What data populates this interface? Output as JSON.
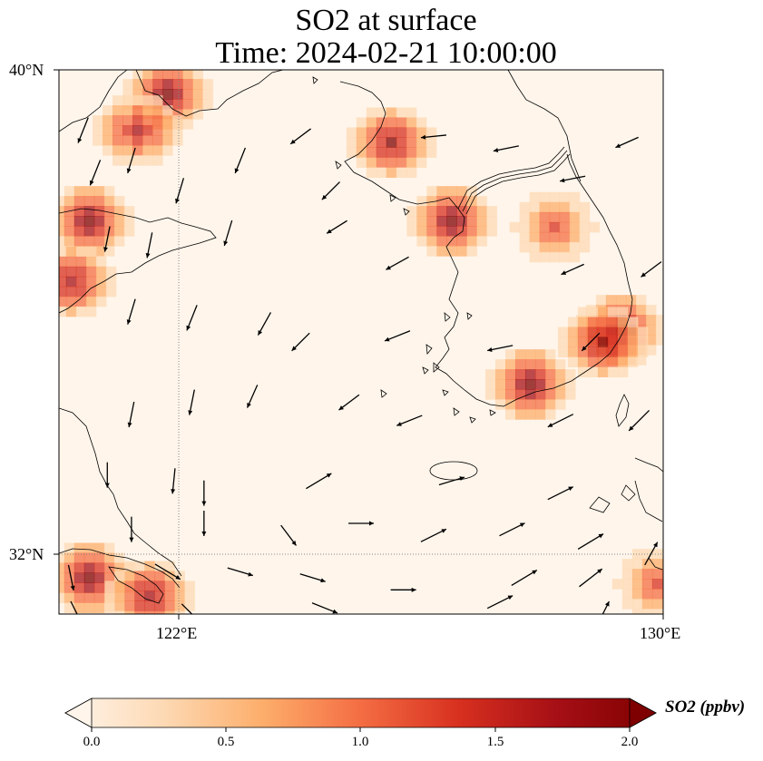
{
  "title_line1": "SO2 at surface",
  "title_line2": "Time: 2024-02-21 10:00:00",
  "lat_labels": [
    "40°N",
    "32°N"
  ],
  "lon_labels": [
    "122°E",
    "130°E"
  ],
  "colorbar": {
    "label": "SO2 (ppbv)",
    "ticks": [
      "0.0",
      "0.5",
      "1.0",
      "1.5",
      "2.0"
    ],
    "colormap": [
      "#fff5eb",
      "#fdd9b4",
      "#fdae6b",
      "#f46d43",
      "#d7301f",
      "#a50f15",
      "#7f0000"
    ]
  },
  "map": {
    "lon_range": [
      120,
      130
    ],
    "lat_range": [
      31,
      40
    ],
    "gridlines": {
      "lon": 122,
      "lat": 32
    },
    "so2_hotspots": [
      {
        "lon": 121.8,
        "lat": 39.6,
        "value": 2.0
      },
      {
        "lon": 121.3,
        "lat": 39.0,
        "value": 1.7
      },
      {
        "lon": 120.5,
        "lat": 37.5,
        "value": 2.0
      },
      {
        "lon": 120.2,
        "lat": 36.5,
        "value": 1.8
      },
      {
        "lon": 125.5,
        "lat": 38.8,
        "value": 1.9
      },
      {
        "lon": 126.5,
        "lat": 37.5,
        "value": 2.0
      },
      {
        "lon": 128.2,
        "lat": 37.4,
        "value": 1.3
      },
      {
        "lon": 129.3,
        "lat": 35.7,
        "value": 2.0
      },
      {
        "lon": 129.0,
        "lat": 35.5,
        "value": 1.9
      },
      {
        "lon": 127.8,
        "lat": 34.8,
        "value": 2.0
      },
      {
        "lon": 120.5,
        "lat": 31.6,
        "value": 2.0
      },
      {
        "lon": 121.5,
        "lat": 31.3,
        "value": 1.8
      },
      {
        "lon": 129.9,
        "lat": 31.5,
        "value": 1.4
      }
    ],
    "wind_vectors": [
      {
        "lon": 120.4,
        "lat": 39.0,
        "u": -0.4,
        "v": -1.0
      },
      {
        "lon": 120.6,
        "lat": 38.3,
        "u": -0.4,
        "v": -1.0
      },
      {
        "lon": 121.2,
        "lat": 38.5,
        "u": -0.3,
        "v": -1.0
      },
      {
        "lon": 122.0,
        "lat": 38.0,
        "u": -0.3,
        "v": -1.0
      },
      {
        "lon": 123.0,
        "lat": 38.5,
        "u": -0.4,
        "v": -1.0
      },
      {
        "lon": 124.0,
        "lat": 38.9,
        "u": -0.8,
        "v": -0.6
      },
      {
        "lon": 124.5,
        "lat": 38.0,
        "u": -0.7,
        "v": -0.7
      },
      {
        "lon": 126.2,
        "lat": 38.9,
        "u": -1.0,
        "v": -0.1
      },
      {
        "lon": 127.4,
        "lat": 38.7,
        "u": -1.0,
        "v": -0.2
      },
      {
        "lon": 128.5,
        "lat": 38.2,
        "u": -1.0,
        "v": -0.2
      },
      {
        "lon": 129.4,
        "lat": 38.8,
        "u": -0.9,
        "v": -0.4
      },
      {
        "lon": 120.8,
        "lat": 37.2,
        "u": -0.2,
        "v": -1.0
      },
      {
        "lon": 121.5,
        "lat": 37.1,
        "u": -0.2,
        "v": -1.0
      },
      {
        "lon": 122.8,
        "lat": 37.3,
        "u": -0.3,
        "v": -1.0
      },
      {
        "lon": 124.6,
        "lat": 37.4,
        "u": -0.8,
        "v": -0.5
      },
      {
        "lon": 125.6,
        "lat": 36.8,
        "u": -0.9,
        "v": -0.5
      },
      {
        "lon": 128.5,
        "lat": 36.7,
        "u": -0.9,
        "v": -0.4
      },
      {
        "lon": 129.8,
        "lat": 36.7,
        "u": -0.8,
        "v": -0.6
      },
      {
        "lon": 121.2,
        "lat": 36.0,
        "u": -0.3,
        "v": -1.0
      },
      {
        "lon": 122.2,
        "lat": 35.9,
        "u": -0.4,
        "v": -1.0
      },
      {
        "lon": 123.4,
        "lat": 35.8,
        "u": -0.5,
        "v": -0.9
      },
      {
        "lon": 124.0,
        "lat": 35.5,
        "u": -0.7,
        "v": -0.7
      },
      {
        "lon": 125.6,
        "lat": 35.6,
        "u": -1.0,
        "v": -0.4
      },
      {
        "lon": 127.3,
        "lat": 35.4,
        "u": -1.0,
        "v": -0.2
      },
      {
        "lon": 128.8,
        "lat": 35.5,
        "u": -0.7,
        "v": -0.7
      },
      {
        "lon": 121.2,
        "lat": 34.3,
        "u": -0.2,
        "v": -1.0
      },
      {
        "lon": 122.2,
        "lat": 34.5,
        "u": -0.2,
        "v": -1.0
      },
      {
        "lon": 123.2,
        "lat": 34.6,
        "u": -0.4,
        "v": -0.9
      },
      {
        "lon": 124.8,
        "lat": 34.5,
        "u": -0.8,
        "v": -0.6
      },
      {
        "lon": 125.8,
        "lat": 34.2,
        "u": -1.0,
        "v": -0.4
      },
      {
        "lon": 128.3,
        "lat": 34.2,
        "u": -1.0,
        "v": -0.5
      },
      {
        "lon": 129.6,
        "lat": 34.2,
        "u": -0.8,
        "v": -0.8
      },
      {
        "lon": 120.8,
        "lat": 33.3,
        "u": 0.0,
        "v": -1.0
      },
      {
        "lon": 121.9,
        "lat": 33.2,
        "u": -0.1,
        "v": -1.0
      },
      {
        "lon": 122.4,
        "lat": 33.0,
        "u": 0.0,
        "v": -1.0
      },
      {
        "lon": 124.3,
        "lat": 33.2,
        "u": 1.0,
        "v": 0.6
      },
      {
        "lon": 126.5,
        "lat": 33.2,
        "u": 1.0,
        "v": 0.3
      },
      {
        "lon": 128.3,
        "lat": 33.0,
        "u": 1.0,
        "v": 0.5
      },
      {
        "lon": 121.2,
        "lat": 32.4,
        "u": 0.0,
        "v": -1.0
      },
      {
        "lon": 122.4,
        "lat": 32.5,
        "u": 0.0,
        "v": -1.0
      },
      {
        "lon": 123.8,
        "lat": 32.3,
        "u": 0.6,
        "v": -0.8
      },
      {
        "lon": 125.0,
        "lat": 32.5,
        "u": 1.0,
        "v": 0.0
      },
      {
        "lon": 126.2,
        "lat": 32.3,
        "u": 1.0,
        "v": 0.5
      },
      {
        "lon": 127.5,
        "lat": 32.4,
        "u": 1.0,
        "v": 0.5
      },
      {
        "lon": 128.8,
        "lat": 32.2,
        "u": 1.0,
        "v": 0.6
      },
      {
        "lon": 129.8,
        "lat": 32.0,
        "u": 0.5,
        "v": 0.9
      },
      {
        "lon": 120.2,
        "lat": 31.6,
        "u": 0.2,
        "v": -1.0
      },
      {
        "lon": 121.8,
        "lat": 31.7,
        "u": 1.0,
        "v": -0.6
      },
      {
        "lon": 123.0,
        "lat": 31.7,
        "u": 1.0,
        "v": -0.3
      },
      {
        "lon": 124.2,
        "lat": 31.6,
        "u": 1.0,
        "v": -0.3
      },
      {
        "lon": 125.7,
        "lat": 31.4,
        "u": 1.0,
        "v": 0.0
      },
      {
        "lon": 127.7,
        "lat": 31.6,
        "u": 1.0,
        "v": 0.6
      },
      {
        "lon": 128.8,
        "lat": 31.6,
        "u": 0.9,
        "v": 0.7
      },
      {
        "lon": 129.0,
        "lat": 31.0,
        "u": 0.5,
        "v": 1.0
      },
      {
        "lon": 120.3,
        "lat": 31.0,
        "u": 0.5,
        "v": -1.0
      },
      {
        "lon": 122.2,
        "lat": 31.0,
        "u": 0.8,
        "v": -0.8
      },
      {
        "lon": 124.4,
        "lat": 31.1,
        "u": 1.0,
        "v": -0.4
      },
      {
        "lon": 127.3,
        "lat": 31.2,
        "u": 1.0,
        "v": 0.5
      }
    ]
  }
}
